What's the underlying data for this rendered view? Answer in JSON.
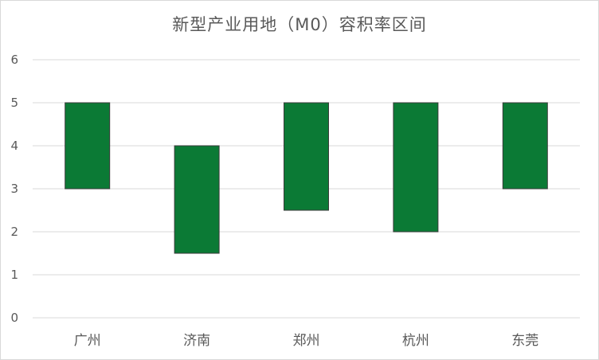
{
  "chart_data": {
    "type": "bar",
    "subtype": "floating-range",
    "title": "新型产业用地（M0）容积率区间",
    "xlabel": "",
    "ylabel": "",
    "categories": [
      "广州",
      "济南",
      "郑州",
      "杭州",
      "东莞"
    ],
    "ranges": [
      {
        "low": 3,
        "high": 5
      },
      {
        "low": 1.5,
        "high": 4
      },
      {
        "low": 2.5,
        "high": 5
      },
      {
        "low": 2,
        "high": 5
      },
      {
        "low": 3,
        "high": 5
      }
    ],
    "ylim": [
      0,
      6
    ],
    "yticks": [
      0,
      1,
      2,
      3,
      4,
      5,
      6
    ],
    "grid": true,
    "legend": "none",
    "bar_color": "#0b7a35",
    "bar_edge_color": "#3a3a3a",
    "grid_color": "#d9d9d9"
  }
}
